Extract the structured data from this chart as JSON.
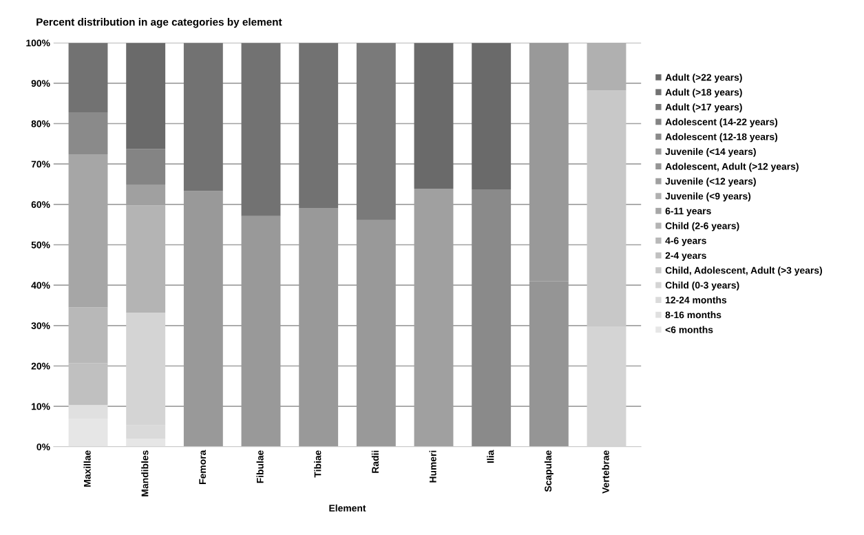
{
  "chart_data": {
    "type": "bar",
    "stacked": true,
    "title": "Percent distribution in age categories by element",
    "xlabel": "Element",
    "categories": [
      "Maxillae",
      "Mandibles",
      "Femora",
      "Fibulae",
      "Tibiae",
      "Radii",
      "Humeri",
      "Ilia",
      "Scapulae",
      "Vertebrae"
    ],
    "ylim": [
      0,
      100
    ],
    "yticks": [
      {
        "value": 0,
        "label": "0%"
      },
      {
        "value": 10,
        "label": "10%"
      },
      {
        "value": 20,
        "label": "20%"
      },
      {
        "value": 30,
        "label": "30%"
      },
      {
        "value": 40,
        "label": "40%"
      },
      {
        "value": 50,
        "label": "50%"
      },
      {
        "value": 60,
        "label": "60%"
      },
      {
        "value": 70,
        "label": "70%"
      },
      {
        "value": 80,
        "label": "80%"
      },
      {
        "value": 90,
        "label": "90%"
      },
      {
        "value": 100,
        "label": "100%"
      }
    ],
    "grid": "y",
    "legend": "right",
    "series": [
      {
        "name": "<6 months",
        "color": "#e6e6e6",
        "values": [
          6.9,
          2,
          null,
          null,
          null,
          null,
          null,
          null,
          null,
          null
        ]
      },
      {
        "name": "8-16 months",
        "color": "#e0e0e0",
        "values": [
          3.4,
          null,
          null,
          null,
          null,
          null,
          null,
          null,
          null,
          null
        ]
      },
      {
        "name": "12-24 months",
        "color": "#dadada",
        "values": [
          null,
          3.3,
          null,
          null,
          null,
          null,
          null,
          null,
          null,
          null
        ]
      },
      {
        "name": "Child (0-3 years)",
        "color": "#d4d4d4",
        "values": [
          null,
          27.9,
          null,
          null,
          null,
          null,
          null,
          null,
          null,
          29.9
        ]
      },
      {
        "name": "Child, Adolescent, Adult (>3 years)",
        "color": "#c8c8c8",
        "values": [
          null,
          null,
          null,
          null,
          null,
          null,
          null,
          null,
          null,
          58.3
        ]
      },
      {
        "name": "2-4 years",
        "color": "#c0c0c0",
        "values": [
          10.4,
          null,
          null,
          null,
          null,
          null,
          null,
          null,
          null,
          null
        ]
      },
      {
        "name": "4-6 years",
        "color": "#b8b8b8",
        "values": [
          13.8,
          null,
          null,
          null,
          null,
          null,
          null,
          null,
          null,
          null
        ]
      },
      {
        "name": "Child (2-6 years)",
        "color": "#b4b4b4",
        "values": [
          null,
          26.5,
          null,
          null,
          null,
          null,
          null,
          null,
          null,
          null
        ]
      },
      {
        "name": "6-11 years",
        "color": "#a6a6a6",
        "values": [
          37.9,
          null,
          null,
          null,
          null,
          null,
          null,
          null,
          null,
          null
        ]
      },
      {
        "name": "Juvenile (<9 years)",
        "color": "#b0b0b0",
        "values": [
          null,
          null,
          null,
          null,
          null,
          null,
          null,
          null,
          null,
          11.8
        ]
      },
      {
        "name": "Juvenile (<12 years)",
        "color": "#a0a0a0",
        "values": [
          null,
          5.2,
          null,
          null,
          null,
          null,
          63.9,
          null,
          null,
          null
        ]
      },
      {
        "name": "Adolescent, Adult (>12 years)",
        "color": "#959595",
        "values": [
          null,
          null,
          null,
          null,
          null,
          null,
          null,
          null,
          40.9,
          null
        ]
      },
      {
        "name": "Juvenile (<14 years)",
        "color": "#999999",
        "values": [
          null,
          null,
          63.3,
          57.1,
          59.1,
          56.1,
          null,
          null,
          59.1,
          null
        ]
      },
      {
        "name": "Adolescent (12-18 years)",
        "color": "#8a8a8a",
        "values": [
          10.4,
          null,
          null,
          null,
          null,
          null,
          null,
          63.7,
          null,
          null
        ]
      },
      {
        "name": "Adolescent (14-22 years)",
        "color": "#848484",
        "values": [
          null,
          8.8,
          null,
          null,
          null,
          null,
          null,
          null,
          null,
          null
        ]
      },
      {
        "name": "Adult (>17 years)",
        "color": "#7a7a7a",
        "values": [
          null,
          null,
          null,
          null,
          null,
          43.9,
          null,
          null,
          null,
          null
        ]
      },
      {
        "name": "Adult (>18 years)",
        "color": "#727272",
        "values": [
          17.2,
          null,
          36.7,
          42.9,
          40.9,
          null,
          null,
          null,
          null,
          null
        ]
      },
      {
        "name": "Adult (>22 years)",
        "color": "#6a6a6a",
        "values": [
          null,
          26.3,
          null,
          null,
          null,
          null,
          36.1,
          36.3,
          null,
          null
        ]
      }
    ]
  }
}
